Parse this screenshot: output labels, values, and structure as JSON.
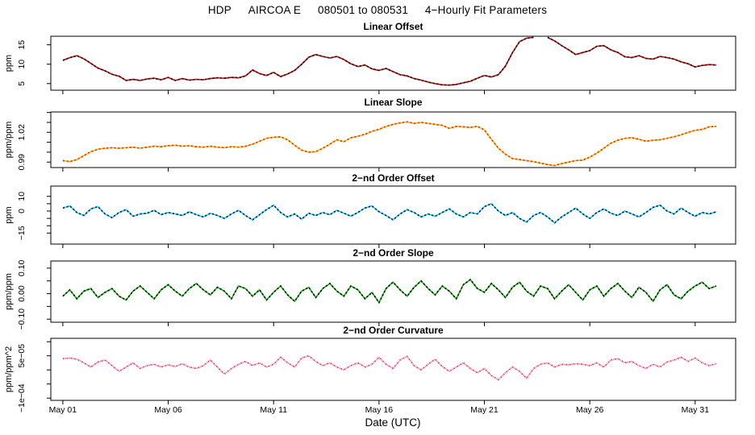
{
  "chart_data": {
    "type": "line",
    "title": "HDP   AIRCOA E   080501 to 080531   4−Hourly Fit Parameters",
    "xlabel": "Date (UTC)",
    "x_unit": "day of May 2008",
    "xlim": [
      0.43,
      32.92
    ],
    "x_start": 1,
    "x_step": 0.33333,
    "x_ticks": [
      {
        "d": 1,
        "label": "May 01"
      },
      {
        "d": 6,
        "label": "May 06"
      },
      {
        "d": 11,
        "label": "May 11"
      },
      {
        "d": 16,
        "label": "May 16"
      },
      {
        "d": 21,
        "label": "May 21"
      },
      {
        "d": 26,
        "label": "May 26"
      },
      {
        "d": 31,
        "label": "May 31"
      }
    ],
    "grid": false,
    "legend": "none",
    "panels": [
      {
        "title": "Linear Offset",
        "ylabel": "ppm",
        "ylim": [
          3.3,
          17.2
        ],
        "yticks": [
          {
            "v": 5,
            "label": "5"
          },
          {
            "v": 10,
            "label": "10"
          },
          {
            "v": 15,
            "label": "15"
          }
        ],
        "colors": {
          "primary": "#E80000",
          "secondary": "#000000"
        },
        "dotted": false,
        "values": [
          11.0,
          11.7,
          12.2,
          11.4,
          10.2,
          9.0,
          8.3,
          7.4,
          6.9,
          5.8,
          6.1,
          5.8,
          6.2,
          6.4,
          6.0,
          6.6,
          5.8,
          6.3,
          5.9,
          6.1,
          6.0,
          6.3,
          6.5,
          6.4,
          6.6,
          6.5,
          7.0,
          8.5,
          7.6,
          7.1,
          7.9,
          6.8,
          7.5,
          8.4,
          10.0,
          11.8,
          12.5,
          12.0,
          11.6,
          12.0,
          11.2,
          10.1,
          9.4,
          9.8,
          8.8,
          8.4,
          8.9,
          8.1,
          7.3,
          7.0,
          6.3,
          5.9,
          5.4,
          5.0,
          4.7,
          4.6,
          4.8,
          5.2,
          5.6,
          6.4,
          7.1,
          6.7,
          7.3,
          9.5,
          13.0,
          15.8,
          16.7,
          16.9,
          null,
          16.9,
          16.0,
          14.8,
          13.7,
          12.5,
          13.0,
          13.5,
          14.6,
          14.8,
          13.7,
          13.0,
          11.9,
          11.7,
          12.2,
          11.5,
          11.3,
          12.0,
          11.7,
          11.3,
          10.6,
          10.1,
          9.3,
          9.7,
          9.9,
          9.8
        ]
      },
      {
        "title": "Linear Slope",
        "ylabel": "ppm/ppm",
        "ylim": [
          0.9845,
          1.0405
        ],
        "yticks": [
          {
            "v": 0.99,
            "label": "0.99"
          },
          {
            "v": 1.0,
            "label": ""
          },
          {
            "v": 1.01,
            "label": ""
          },
          {
            "v": 1.02,
            "label": "1.02"
          },
          {
            "v": 1.03,
            "label": ""
          },
          {
            "v": 1.04,
            "label": ""
          }
        ],
        "colors": {
          "primary": "#FFC400",
          "secondary": "#E53000"
        },
        "dotted": false,
        "values": [
          0.9915,
          0.9905,
          0.9925,
          0.9965,
          1.0005,
          1.003,
          1.004,
          1.0045,
          1.004,
          1.0045,
          1.005,
          1.004,
          1.005,
          1.006,
          1.0055,
          1.0065,
          1.007,
          1.006,
          1.0065,
          1.0055,
          1.005,
          1.006,
          1.005,
          1.0045,
          1.0055,
          1.005,
          1.006,
          1.008,
          1.011,
          1.014,
          1.015,
          1.0155,
          1.0125,
          1.007,
          1.002,
          1.0,
          1.0005,
          1.004,
          1.008,
          1.0125,
          1.0105,
          1.0145,
          1.016,
          1.018,
          1.021,
          1.023,
          1.026,
          1.028,
          1.0295,
          1.0305,
          1.029,
          1.03,
          1.029,
          1.028,
          1.027,
          1.024,
          1.026,
          1.0255,
          1.025,
          1.026,
          1.0225,
          1.013,
          1.004,
          0.998,
          0.9935,
          0.9925,
          0.9915,
          0.9905,
          0.989,
          0.9875,
          0.9865,
          0.9885,
          0.99,
          0.9915,
          0.992,
          0.995,
          0.999,
          1.004,
          1.009,
          1.012,
          1.014,
          1.0145,
          1.013,
          1.011,
          1.012,
          1.0125,
          1.014,
          1.0155,
          1.0175,
          1.02,
          1.022,
          1.023,
          1.0255,
          1.026
        ]
      },
      {
        "title": "2−nd Order Offset",
        "ylabel": "ppm",
        "ylim": [
          -22.5,
          17.0
        ],
        "yticks": [
          {
            "v": -15,
            "label": "−15"
          },
          {
            "v": -10,
            "label": ""
          },
          {
            "v": -5,
            "label": ""
          },
          {
            "v": 0,
            "label": "0"
          },
          {
            "v": 5,
            "label": ""
          },
          {
            "v": 10,
            "label": "10"
          }
        ],
        "colors": {
          "primary": "#00E5F5",
          "secondary": "#101060"
        },
        "dotted": false,
        "values": [
          2,
          3.5,
          -1,
          -3,
          1.5,
          3,
          -2,
          -4.5,
          -1,
          1,
          -3.5,
          -2,
          -1.5,
          0.5,
          -2.5,
          -1,
          -2,
          -3,
          -0.5,
          -2.5,
          -4,
          -1.5,
          -3,
          -5,
          -2,
          0.5,
          -3,
          -6,
          -2.5,
          1,
          4,
          -1,
          -4,
          -2,
          -5.5,
          -1.5,
          -3,
          -1,
          -2.5,
          0.5,
          -1.5,
          -3.5,
          -1,
          2,
          3.5,
          -0.5,
          -3,
          -6,
          -2,
          1,
          -1,
          -4,
          -2,
          -3.5,
          -1,
          1.5,
          -2,
          -4,
          -1,
          -2,
          3,
          5,
          0,
          -3,
          -1,
          -5,
          -7.5,
          -3,
          -1,
          -4,
          -8,
          -4,
          -1,
          2,
          -2,
          -5,
          -1,
          1.5,
          -1.5,
          -3,
          0,
          -2,
          -4,
          -1,
          2.5,
          4,
          0,
          -2,
          2,
          -1,
          -3.5,
          -1,
          -2,
          -0.5
        ]
      },
      {
        "title": "2−nd Order Slope",
        "ylabel": "ppm/ppm",
        "ylim": [
          -0.112,
          0.128
        ],
        "yticks": [
          {
            "v": -0.1,
            "label": "−0.10"
          },
          {
            "v": -0.05,
            "label": ""
          },
          {
            "v": 0.0,
            "label": "0.00"
          },
          {
            "v": 0.05,
            "label": ""
          },
          {
            "v": 0.1,
            "label": "0.10"
          }
        ],
        "colors": {
          "primary": "#00C800",
          "secondary": "#000000"
        },
        "dotted": false,
        "values": [
          -0.01,
          0.015,
          -0.02,
          0.01,
          0.02,
          -0.015,
          0.005,
          0.02,
          -0.01,
          -0.025,
          0.01,
          0.03,
          0.005,
          -0.02,
          0.015,
          0.035,
          0.01,
          -0.01,
          0.02,
          0.04,
          0.015,
          -0.005,
          0.025,
          0.01,
          -0.02,
          0.03,
          0.02,
          -0.01,
          0.015,
          -0.025,
          0.005,
          0.03,
          -0.005,
          -0.03,
          0.01,
          0.025,
          -0.015,
          0.02,
          0.04,
          0.01,
          -0.01,
          0.03,
          0.015,
          -0.02,
          0.005,
          -0.035,
          0.02,
          0.045,
          0.015,
          -0.01,
          0.025,
          0.05,
          0.02,
          -0.005,
          0.03,
          0.01,
          -0.02,
          0.035,
          0.055,
          0.02,
          0.005,
          0.04,
          0.015,
          -0.015,
          0.025,
          0.045,
          0.01,
          -0.01,
          0.03,
          0.02,
          -0.02,
          0.01,
          0.035,
          0.005,
          -0.025,
          0.015,
          0.03,
          -0.01,
          0.02,
          0.04,
          0.01,
          -0.015,
          0.025,
          0.005,
          -0.03,
          0.015,
          0.035,
          -0.005,
          -0.02,
          0.01,
          0.03,
          0.045,
          0.02,
          0.03
        ]
      },
      {
        "title": "2−nd Order Curvature",
        "ylabel": "ppm/ppm^2",
        "ylim": [
          -0.000108,
          0.000112
        ],
        "yticks": [
          {
            "v": -0.0001,
            "label": "−1e−04"
          },
          {
            "v": -5e-05,
            "label": ""
          },
          {
            "v": 0,
            "label": ""
          },
          {
            "v": 5e-05,
            "label": "5e−05"
          },
          {
            "v": 0.0001,
            "label": ""
          }
        ],
        "colors": {
          "primary": "#FF85A2",
          "secondary": "#F2285A"
        },
        "dotted": true,
        "values": [
          4e-05,
          4.2e-05,
          3.8e-05,
          2.5e-05,
          1e-05,
          2.8e-05,
          3.5e-05,
          1.5e-05,
          -5e-06,
          1e-05,
          2.5e-05,
          5e-06,
          1.5e-05,
          2e-05,
          1e-05,
          1.8e-05,
          1.2e-05,
          2.2e-05,
          1e-05,
          5e-06,
          1.5e-05,
          3.5e-05,
          1e-05,
          -1.5e-05,
          5e-06,
          2e-05,
          3e-05,
          1.5e-05,
          2.5e-05,
          1e-05,
          2e-05,
          4.5e-05,
          2.5e-05,
          1e-05,
          4.2e-05,
          5e-05,
          3e-05,
          1.5e-05,
          2.5e-05,
          1e-05,
          0,
          1.5e-05,
          2.5e-05,
          1e-05,
          2e-05,
          4.5e-05,
          2e-05,
          5e-06,
          3.5e-05,
          4.8e-05,
          1.5e-05,
          0,
          2e-05,
          3.8e-05,
          1.2e-05,
          -5e-06,
          1e-05,
          2.5e-05,
          5e-06,
          -1e-05,
          5e-06,
          -2e-05,
          -3.5e-05,
          -1e-05,
          1e-05,
          -5e-06,
          -3e-05,
          5e-06,
          2e-05,
          2.5e-05,
          1e-05,
          2e-05,
          1.8e-05,
          2.2e-05,
          2e-05,
          1.5e-05,
          2.5e-05,
          1e-05,
          3.5e-05,
          4e-05,
          2.5e-05,
          3e-05,
          1.5e-05,
          5e-06,
          2e-05,
          1e-05,
          2.8e-05,
          3.5e-05,
          4.5e-05,
          3e-05,
          4.2e-05,
          2.5e-05,
          1.5e-05,
          2.2e-05
        ]
      }
    ]
  }
}
